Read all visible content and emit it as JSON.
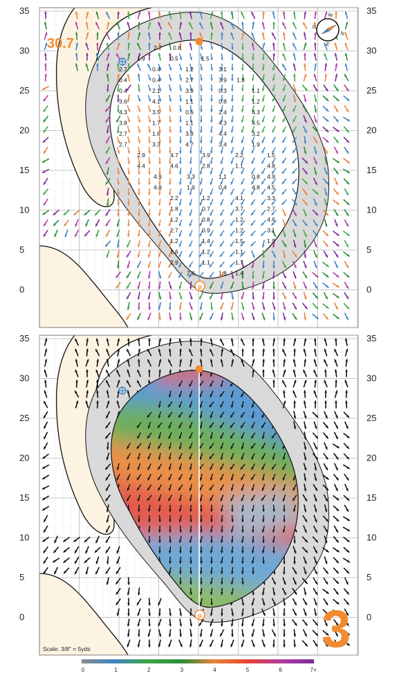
{
  "y_axis": {
    "ticks": [
      "35",
      "30",
      "25",
      "20",
      "15",
      "10",
      "5",
      "0"
    ]
  },
  "distance_label": "30.7",
  "hole_number": "3",
  "scale_note": "Scale: 3/8\" = 5yds",
  "compass_letters": [
    "W",
    "N",
    "E",
    "S"
  ],
  "legend": {
    "ticks": [
      "0",
      "1",
      "2",
      "3",
      "4",
      "5",
      "6",
      "7+"
    ]
  },
  "slope_values": [
    "2.7",
    "0.8",
    "1.9",
    "0.5",
    "1.5",
    "2.7",
    "0.4",
    "1.2",
    "3.1",
    "0.4",
    "0.4",
    "2.7",
    "3.9",
    "1.3",
    "0.4",
    "2.1",
    "3.9",
    "0.3",
    "1.1",
    "3.6",
    "4.1",
    "1.1",
    "0.8",
    "1.2",
    "4.3",
    "3.5",
    "0.6",
    "2.4",
    "4.3",
    "3.8",
    "1.7",
    "1.1",
    "4.3",
    "4.5",
    "2.7",
    "1.6",
    "3.8",
    "4.4",
    "3.2",
    "2.7",
    "3.3",
    "4.7",
    "3.4",
    "1.9",
    "2.9",
    "4.7",
    "3.9",
    "2.2",
    "1.5",
    "4.4",
    "4.6",
    "2.8",
    "1.1",
    "4.8",
    "4.9",
    "3.3",
    "1.1",
    "0.8",
    "4.9",
    "4.8",
    "1.9",
    "0.4",
    "4.8",
    "4.5",
    "2.2",
    "1.2",
    "4.1",
    "3.3",
    "1.8",
    "0.7",
    "3.7",
    "2.7",
    "1.2",
    "0.8",
    "1.2",
    "4.6",
    "2.7",
    "0.9",
    "1.2",
    "3.1",
    "1.2",
    "1.4",
    "1.5",
    "1.9",
    "1.6",
    "1.2",
    "1.1",
    "2.9",
    "1.1",
    "1.7",
    "2.6",
    "1.8",
    "1.4",
    "3.4",
    "3.2",
    "1.1",
    "2.2",
    "1.8",
    "1.6",
    "3.2",
    "2.4",
    "2.2",
    "2.2",
    "2.3"
  ],
  "colors": {
    "sand": "#FDF3E3",
    "fringe": "#D9D9D9",
    "accent": "#F28A30",
    "slope_scale": [
      "#8C8C8C",
      "#3F83C4",
      "#3EA648",
      "#2B8C3A",
      "#E8823A",
      "#E8422E",
      "#B23AA0",
      "#7B2C9A"
    ]
  }
}
